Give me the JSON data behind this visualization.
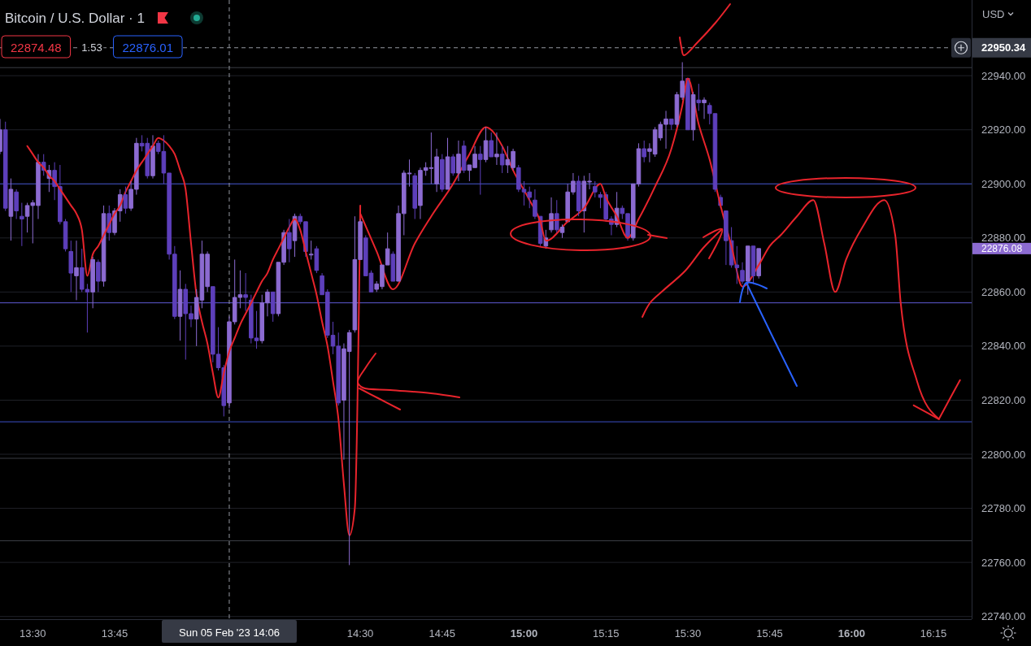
{
  "chart_data": {
    "type": "candlestick",
    "title": "Bitcoin / U.S. Dollar · 1",
    "ylabel": "USD",
    "x": [
      "2023-02-05T13:24",
      "2023-02-05T13:25",
      "2023-02-05T13:26",
      "2023-02-05T13:27",
      "2023-02-05T13:28",
      "2023-02-05T13:29",
      "2023-02-05T13:30",
      "2023-02-05T13:31",
      "2023-02-05T13:32",
      "2023-02-05T13:33",
      "2023-02-05T13:34",
      "2023-02-05T13:35",
      "2023-02-05T13:36",
      "2023-02-05T13:37",
      "2023-02-05T13:38",
      "2023-02-05T13:39",
      "2023-02-05T13:40",
      "2023-02-05T13:41",
      "2023-02-05T13:42",
      "2023-02-05T13:43",
      "2023-02-05T13:44",
      "2023-02-05T13:45",
      "2023-02-05T13:46",
      "2023-02-05T13:47",
      "2023-02-05T13:48",
      "2023-02-05T13:49",
      "2023-02-05T13:50",
      "2023-02-05T13:51",
      "2023-02-05T13:52",
      "2023-02-05T13:53",
      "2023-02-05T13:54",
      "2023-02-05T13:55",
      "2023-02-05T13:56",
      "2023-02-05T13:57",
      "2023-02-05T13:58",
      "2023-02-05T13:59",
      "2023-02-05T14:00",
      "2023-02-05T14:01",
      "2023-02-05T14:02",
      "2023-02-05T14:03",
      "2023-02-05T14:04",
      "2023-02-05T14:05",
      "2023-02-05T14:06",
      "2023-02-05T14:07",
      "2023-02-05T14:08",
      "2023-02-05T14:09",
      "2023-02-05T14:10",
      "2023-02-05T14:11",
      "2023-02-05T14:12",
      "2023-02-05T14:13",
      "2023-02-05T14:14",
      "2023-02-05T14:15",
      "2023-02-05T14:16",
      "2023-02-05T14:17",
      "2023-02-05T14:18",
      "2023-02-05T14:19",
      "2023-02-05T14:20",
      "2023-02-05T14:21",
      "2023-02-05T14:22",
      "2023-02-05T14:23",
      "2023-02-05T14:24",
      "2023-02-05T14:25",
      "2023-02-05T14:26",
      "2023-02-05T14:27",
      "2023-02-05T14:28",
      "2023-02-05T14:29",
      "2023-02-05T14:30",
      "2023-02-05T14:31",
      "2023-02-05T14:32",
      "2023-02-05T14:33",
      "2023-02-05T14:34",
      "2023-02-05T14:35",
      "2023-02-05T14:36",
      "2023-02-05T14:37",
      "2023-02-05T14:38",
      "2023-02-05T14:39",
      "2023-02-05T14:40",
      "2023-02-05T14:41",
      "2023-02-05T14:42",
      "2023-02-05T14:43",
      "2023-02-05T14:44",
      "2023-02-05T14:45",
      "2023-02-05T14:46",
      "2023-02-05T14:47",
      "2023-02-05T14:48",
      "2023-02-05T14:49",
      "2023-02-05T14:50",
      "2023-02-05T14:51",
      "2023-02-05T14:52",
      "2023-02-05T14:53",
      "2023-02-05T14:54",
      "2023-02-05T14:55",
      "2023-02-05T14:56",
      "2023-02-05T14:57",
      "2023-02-05T14:58",
      "2023-02-05T14:59",
      "2023-02-05T15:00",
      "2023-02-05T15:01",
      "2023-02-05T15:02",
      "2023-02-05T15:03",
      "2023-02-05T15:04",
      "2023-02-05T15:05",
      "2023-02-05T15:06",
      "2023-02-05T15:07",
      "2023-02-05T15:08",
      "2023-02-05T15:09",
      "2023-02-05T15:10",
      "2023-02-05T15:11",
      "2023-02-05T15:12",
      "2023-02-05T15:13",
      "2023-02-05T15:14",
      "2023-02-05T15:15",
      "2023-02-05T15:16",
      "2023-02-05T15:17",
      "2023-02-05T15:18",
      "2023-02-05T15:19",
      "2023-02-05T15:20",
      "2023-02-05T15:21",
      "2023-02-05T15:22",
      "2023-02-05T15:23",
      "2023-02-05T15:24",
      "2023-02-05T15:25",
      "2023-02-05T15:26",
      "2023-02-05T15:27",
      "2023-02-05T15:28",
      "2023-02-05T15:29",
      "2023-02-05T15:30",
      "2023-02-05T15:31",
      "2023-02-05T15:32",
      "2023-02-05T15:33",
      "2023-02-05T15:34",
      "2023-02-05T15:35",
      "2023-02-05T15:36",
      "2023-02-05T15:37",
      "2023-02-05T15:38",
      "2023-02-05T15:39",
      "2023-02-05T15:40",
      "2023-02-05T15:41",
      "2023-02-05T15:42",
      "2023-02-05T15:43"
    ],
    "ohlc": [
      [
        22912,
        22924,
        22911,
        22920
      ],
      [
        22920,
        22923,
        22890,
        22891
      ],
      [
        22888,
        22902,
        22879,
        22898
      ],
      [
        22897,
        22898,
        22887,
        22890
      ],
      [
        22888,
        22893,
        22877,
        22887
      ],
      [
        22888,
        22893,
        22882,
        22892
      ],
      [
        22892,
        22894,
        22878,
        22893
      ],
      [
        22892,
        22911,
        22887,
        22908
      ],
      [
        22908,
        22911,
        22903,
        22905
      ],
      [
        22902,
        22907,
        22897,
        22905
      ],
      [
        22905,
        22908,
        22894,
        22899
      ],
      [
        22899,
        22907,
        22885,
        22886
      ],
      [
        22886,
        22887,
        22875,
        22876
      ],
      [
        22875,
        22879,
        22860,
        22867
      ],
      [
        22866,
        22879,
        22857,
        22869
      ],
      [
        22869,
        22876,
        22860,
        22861
      ],
      [
        22861,
        22863,
        22845,
        22860
      ],
      [
        22860,
        22873,
        22854,
        22872
      ],
      [
        22871,
        22872,
        22860,
        22864
      ],
      [
        22864,
        22892,
        22862,
        22889
      ],
      [
        22889,
        22892,
        22879,
        22882
      ],
      [
        22882,
        22891,
        22881,
        22890
      ],
      [
        22890,
        22898,
        22886,
        22896
      ],
      [
        22896,
        22899,
        22889,
        22891
      ],
      [
        22891,
        22901,
        22890,
        22898
      ],
      [
        22898,
        22917,
        22896,
        22915
      ],
      [
        22915,
        22918,
        22912,
        22914
      ],
      [
        22915,
        22917,
        22902,
        22903
      ],
      [
        22903,
        22918,
        22902,
        22914
      ],
      [
        22915,
        22916,
        22911,
        22912
      ],
      [
        22912,
        22918,
        22900,
        22904
      ],
      [
        22904,
        22904,
        22872,
        22874
      ],
      [
        22874,
        22877,
        22850,
        22851
      ],
      [
        22851,
        22868,
        22842,
        22861
      ],
      [
        22861,
        22863,
        22835,
        22852
      ],
      [
        22852,
        22855,
        22847,
        22850
      ],
      [
        22850,
        22861,
        22840,
        22858
      ],
      [
        22857,
        22879,
        22854,
        22874
      ],
      [
        22862,
        22875,
        22860,
        22874
      ],
      [
        22862,
        22862,
        22834,
        22837
      ],
      [
        22837,
        22847,
        22831,
        22832
      ],
      [
        22832,
        22833,
        22814,
        22818
      ],
      [
        22819,
        22851,
        22817,
        22849
      ],
      [
        22849,
        22872,
        22848,
        22858
      ],
      [
        22858,
        22868,
        22854,
        22859
      ],
      [
        22859,
        22867,
        22853,
        22858
      ],
      [
        22857,
        22859,
        22841,
        22843
      ],
      [
        22843,
        22853,
        22839,
        22842
      ],
      [
        22842,
        22859,
        22841,
        22856
      ],
      [
        22856,
        22861,
        22851,
        22860
      ],
      [
        22860,
        22860,
        22849,
        22852
      ],
      [
        22852,
        22871,
        22851,
        22871
      ],
      [
        22871,
        22883,
        22870,
        22882
      ],
      [
        22882,
        22887,
        22871,
        22876
      ],
      [
        22879,
        22889,
        22873,
        22888
      ],
      [
        22888,
        22889,
        22885,
        22886
      ],
      [
        22886,
        22886,
        22873,
        22875
      ],
      [
        22874,
        22879,
        22872,
        22874
      ],
      [
        22876,
        22877,
        22867,
        22868
      ],
      [
        22866,
        22867,
        22859,
        22859
      ],
      [
        22860,
        22861,
        22843,
        22844
      ],
      [
        22844,
        22849,
        22837,
        22840
      ],
      [
        22840,
        22845,
        22818,
        22819
      ],
      [
        22820,
        22841,
        22798,
        22839
      ],
      [
        22838,
        22846,
        22759,
        22845
      ],
      [
        22846,
        22888,
        22845,
        22872
      ],
      [
        22872,
        22887,
        22872,
        22886
      ],
      [
        22880,
        22881,
        22866,
        22866
      ],
      [
        22867,
        22868,
        22860,
        22860
      ],
      [
        22861,
        22864,
        22860,
        22863
      ],
      [
        22862,
        22870,
        22861,
        22870
      ],
      [
        22870,
        22882,
        22870,
        22876
      ],
      [
        22874,
        22875,
        22864,
        22864
      ],
      [
        22864,
        22892,
        22864,
        22889
      ],
      [
        22889,
        22905,
        22881,
        22904
      ],
      [
        22904,
        22909,
        22899,
        22904
      ],
      [
        22903,
        22904,
        22887,
        22891
      ],
      [
        22892,
        22906,
        22887,
        22905
      ],
      [
        22905,
        22908,
        22903,
        22906
      ],
      [
        22906,
        22919,
        22900,
        22906
      ],
      [
        22900,
        22913,
        22897,
        22910
      ],
      [
        22909,
        22911,
        22897,
        22898
      ],
      [
        22898,
        22917,
        22898,
        22910
      ],
      [
        22910,
        22911,
        22903,
        22904
      ],
      [
        22904,
        22916,
        22901,
        22911
      ],
      [
        22914,
        22916,
        22904,
        22905
      ],
      [
        22905,
        22907,
        22901,
        22907
      ],
      [
        22906,
        22914,
        22906,
        22911
      ],
      [
        22911,
        22914,
        22896,
        22909
      ],
      [
        22909,
        22921,
        22908,
        22916
      ],
      [
        22916,
        22919,
        22910,
        22910
      ],
      [
        22910,
        22919,
        22907,
        22911
      ],
      [
        22911,
        22914,
        22904,
        22907
      ],
      [
        22907,
        22914,
        22904,
        22909
      ],
      [
        22906,
        22913,
        22905,
        22912
      ],
      [
        22906,
        22907,
        22897,
        22898
      ],
      [
        22898,
        22901,
        22892,
        22897
      ],
      [
        22897,
        22899,
        22891,
        22895
      ],
      [
        22894,
        22898,
        22887,
        22888
      ],
      [
        22888,
        22888,
        22877,
        22878
      ],
      [
        22877,
        22883,
        22876,
        22880
      ],
      [
        22883,
        22895,
        22882,
        22889
      ],
      [
        22889,
        22894,
        22882,
        22883
      ],
      [
        22882,
        22885,
        22880,
        22884
      ],
      [
        22886,
        22900,
        22886,
        22897
      ],
      [
        22897,
        22904,
        22896,
        22901
      ],
      [
        22901,
        22903,
        22888,
        22890
      ],
      [
        22890,
        22903,
        22882,
        22901
      ],
      [
        22901,
        22904,
        22898,
        22901
      ],
      [
        22899,
        22901,
        22895,
        22897
      ],
      [
        22896,
        22897,
        22891,
        22895
      ],
      [
        22896,
        22897,
        22886,
        22887
      ],
      [
        22887,
        22888,
        22881,
        22885
      ],
      [
        22885,
        22897,
        22884,
        22891
      ],
      [
        22891,
        22892,
        22887,
        22889
      ],
      [
        22889,
        22889,
        22879,
        22880
      ],
      [
        22880,
        22900,
        22879,
        22900
      ],
      [
        22900,
        22915,
        22899,
        22913
      ],
      [
        22913,
        22916,
        22908,
        22910
      ],
      [
        22912,
        22915,
        22908,
        22913
      ],
      [
        22911,
        22921,
        22910,
        22920
      ],
      [
        22917,
        22923,
        22916,
        22922
      ],
      [
        22922,
        22927,
        22913,
        22924
      ],
      [
        22924,
        22924,
        22920,
        22922
      ],
      [
        22922,
        22934,
        22921,
        22933
      ],
      [
        22932,
        22945,
        22931,
        22938
      ],
      [
        22939,
        22939,
        22920,
        22920
      ],
      [
        22920,
        22934,
        22916,
        22933
      ],
      [
        22931,
        22937,
        22927,
        22930
      ],
      [
        22930,
        22932,
        22924,
        22931
      ],
      [
        22929,
        22930,
        22922,
        22926
      ],
      [
        22926,
        22926,
        22897,
        22898
      ],
      [
        22895,
        22896,
        22891,
        22892
      ],
      [
        22890,
        22890,
        22870,
        22879
      ],
      [
        22879,
        22884,
        22869,
        22870
      ],
      [
        22870,
        22877,
        22863,
        22869
      ],
      [
        22868,
        22871,
        22863,
        22864
      ],
      [
        22864,
        22877,
        22859,
        22877
      ],
      [
        22877,
        22877,
        22863,
        22866
      ],
      [
        22866,
        22876.08,
        22865,
        22876.08
      ]
    ],
    "colors": [
      "#8c6bd1",
      "#5d3fba",
      "#8c6bd1",
      "#5d3fba",
      "#5d3fba",
      "#8c6bd1",
      "#8c6bd1",
      "#8c6bd1",
      "#5d3fba",
      "#8c6bd1",
      "#5d3fba",
      "#5d3fba",
      "#5d3fba",
      "#5d3fba",
      "#8c6bd1",
      "#5d3fba",
      "#5d3fba",
      "#8c6bd1",
      "#5d3fba",
      "#8c6bd1",
      "#5d3fba",
      "#8c6bd1",
      "#8c6bd1",
      "#5d3fba",
      "#8c6bd1",
      "#8c6bd1",
      "#5d3fba",
      "#5d3fba",
      "#8c6bd1",
      "#5d3fba",
      "#5d3fba",
      "#5d3fba",
      "#5d3fba",
      "#8c6bd1",
      "#5d3fba",
      "#5d3fba",
      "#8c6bd1",
      "#8c6bd1",
      "#8c6bd1",
      "#5d3fba",
      "#5d3fba",
      "#5d3fba",
      "#8c6bd1",
      "#8c6bd1",
      "#8c6bd1",
      "#5d3fba",
      "#5d3fba",
      "#5d3fba",
      "#8c6bd1",
      "#8c6bd1",
      "#5d3fba",
      "#8c6bd1",
      "#8c6bd1",
      "#5d3fba",
      "#8c6bd1",
      "#5d3fba",
      "#5d3fba",
      "#8c6bd1",
      "#5d3fba",
      "#5d3fba",
      "#5d3fba",
      "#5d3fba",
      "#5d3fba",
      "#8c6bd1",
      "#8c6bd1",
      "#8c6bd1",
      "#8c6bd1",
      "#5d3fba",
      "#5d3fba",
      "#8c6bd1",
      "#8c6bd1",
      "#8c6bd1",
      "#5d3fba",
      "#8c6bd1",
      "#8c6bd1",
      "#8c6bd1",
      "#5d3fba",
      "#8c6bd1",
      "#8c6bd1",
      "#8c6bd1",
      "#8c6bd1",
      "#5d3fba",
      "#8c6bd1",
      "#5d3fba",
      "#8c6bd1",
      "#5d3fba",
      "#8c6bd1",
      "#8c6bd1",
      "#5d3fba",
      "#8c6bd1",
      "#5d3fba",
      "#8c6bd1",
      "#5d3fba",
      "#8c6bd1",
      "#8c6bd1",
      "#5d3fba",
      "#5d3fba",
      "#5d3fba",
      "#5d3fba",
      "#5d3fba",
      "#8c6bd1",
      "#8c6bd1",
      "#5d3fba",
      "#8c6bd1",
      "#8c6bd1",
      "#8c6bd1",
      "#5d3fba",
      "#8c6bd1",
      "#8c6bd1",
      "#5d3fba",
      "#5d3fba",
      "#5d3fba",
      "#5d3fba",
      "#8c6bd1",
      "#5d3fba",
      "#5d3fba",
      "#8c6bd1",
      "#8c6bd1",
      "#5d3fba",
      "#8c6bd1",
      "#8c6bd1",
      "#8c6bd1",
      "#8c6bd1",
      "#5d3fba",
      "#8c6bd1",
      "#8c6bd1",
      "#5d3fba",
      "#8c6bd1",
      "#5d3fba",
      "#8c6bd1",
      "#5d3fba",
      "#5d3fba",
      "#5d3fba",
      "#5d3fba",
      "#5d3fba",
      "#5d3fba",
      "#5d3fba",
      "#8c6bd1",
      "#5d3fba",
      "#8c6bd1"
    ],
    "series": [
      {
        "type": "line",
        "color": "#e8242c",
        "x": [
          "2023-02-05T13:29",
          "2023-02-05T13:30",
          "2023-02-05T13:31",
          "2023-02-05T13:32",
          "2023-02-05T13:33",
          "2023-02-05T13:34",
          "2023-02-05T13:35",
          "2023-02-05T13:36",
          "2023-02-05T13:37",
          "2023-02-05T13:38",
          "2023-02-05T13:39",
          "2023-02-05T13:40",
          "2023-02-05T13:41",
          "2023-02-05T13:42",
          "2023-02-05T13:43",
          "2023-02-05T13:44",
          "2023-02-05T13:45",
          "2023-02-05T13:46",
          "2023-02-05T13:47",
          "2023-02-05T13:48",
          "2023-02-05T13:49",
          "2023-02-05T13:50",
          "2023-02-05T13:51",
          "2023-02-05T13:52",
          "2023-02-05T13:53",
          "2023-02-05T13:54",
          "2023-02-05T13:55",
          "2023-02-05T13:56",
          "2023-02-05T13:57",
          "2023-02-05T13:58",
          "2023-02-05T13:59",
          "2023-02-05T14:00",
          "2023-02-05T14:01",
          "2023-02-05T14:02",
          "2023-02-05T14:03",
          "2023-02-05T14:04",
          "2023-02-05T14:05",
          "2023-02-05T14:06",
          "2023-02-05T14:07",
          "2023-02-05T14:08",
          "2023-02-05T14:09",
          "2023-02-05T14:10",
          "2023-02-05T14:11",
          "2023-02-05T14:12",
          "2023-02-05T14:13",
          "2023-02-05T14:14",
          "2023-02-05T14:15",
          "2023-02-05T14:16",
          "2023-02-05T14:17",
          "2023-02-05T14:18",
          "2023-02-05T14:19",
          "2023-02-05T14:20",
          "2023-02-05T14:21",
          "2023-02-05T14:22",
          "2023-02-05T14:23",
          "2023-02-05T14:24",
          "2023-02-05T14:25",
          "2023-02-05T14:26",
          "2023-02-05T14:27",
          "2023-02-05T14:28",
          "2023-02-05T14:29",
          "2023-02-05T14:30"
        ],
        "values": [
          22914,
          22911,
          22908,
          22906,
          22903,
          22901,
          22898,
          22895,
          22892,
          22889,
          22883,
          22866,
          22874,
          22877,
          22881,
          22885,
          22889,
          22892,
          22897,
          22901,
          22905,
          22908,
          22911,
          22914,
          22917,
          22916,
          22914,
          22911,
          22905,
          22898,
          22878,
          22859,
          22849,
          22841,
          22830,
          22821,
          22830,
          22838,
          22843,
          22848,
          22852,
          22856,
          22860,
          22864,
          22867,
          22872,
          22876,
          22880,
          22884,
          22887,
          22883,
          22875,
          22867,
          22859,
          22849,
          22840,
          22827,
          22813,
          22789,
          22770,
          22780,
          22892
        ]
      },
      {
        "type": "line",
        "color": "#e8242c",
        "x": [
          "2023-02-05T14:30",
          "2023-02-05T14:33",
          "2023-02-05T14:36",
          "2023-02-05T14:40",
          "2023-02-05T14:43",
          "2023-02-05T14:47",
          "2023-02-05T14:50",
          "2023-02-05T14:53",
          "2023-02-05T14:56",
          "2023-02-05T14:58",
          "2023-02-05T15:01",
          "2023-02-05T15:03",
          "2023-02-05T15:04",
          "2023-02-05T15:08",
          "2023-02-05T15:11",
          "2023-02-05T15:14",
          "2023-02-05T15:15",
          "2023-02-05T15:17",
          "2023-02-05T15:19",
          "2023-02-05T15:21",
          "2023-02-05T15:24",
          "2023-02-05T15:27",
          "2023-02-05T15:29",
          "2023-02-05T15:30",
          "2023-02-05T15:32",
          "2023-02-05T15:34",
          "2023-02-05T15:36",
          "2023-02-05T15:38",
          "2023-02-05T15:40",
          "2023-02-05T15:43",
          "2023-02-05T15:45",
          "2023-02-05T15:47",
          "2023-02-05T15:50",
          "2023-02-05T15:53",
          "2023-02-05T15:55",
          "2023-02-05T15:57",
          "2023-02-05T15:59",
          "2023-02-05T16:02",
          "2023-02-05T16:06",
          "2023-02-05T16:08",
          "2023-02-05T16:09",
          "2023-02-05T16:12",
          "2023-02-05T16:16"
        ],
        "values": [
          22889,
          22875,
          22861,
          22878,
          22888,
          22900,
          22911,
          22921,
          22914,
          22905,
          22894,
          22886,
          22879,
          22886,
          22891,
          22900,
          22895,
          22888,
          22880,
          22887,
          22899,
          22913,
          22929,
          22939,
          22922,
          22909,
          22892,
          22877,
          22862,
          22870,
          22877,
          22881,
          22888,
          22894,
          22878,
          22860,
          22872,
          22884,
          22894,
          22881,
          22856,
          22827,
          22813
        ]
      }
    ],
    "xlim": [
      "2023-02-05T13:24",
      "2023-02-05T16:22"
    ],
    "ylim": [
      22739,
      22968
    ],
    "xticks": [
      {
        "value": "2023-02-05T13:30",
        "label": "13:30"
      },
      {
        "value": "2023-02-05T13:45",
        "label": "13:45"
      },
      {
        "value": "2023-02-05T14:30",
        "label": "14:30"
      },
      {
        "value": "2023-02-05T14:45",
        "label": "14:45"
      },
      {
        "value": "2023-02-05T15:00",
        "label": "15:00"
      },
      {
        "value": "2023-02-05T15:15",
        "label": "15:15"
      },
      {
        "value": "2023-02-05T15:30",
        "label": "15:30"
      },
      {
        "value": "2023-02-05T15:45",
        "label": "15:45"
      },
      {
        "value": "2023-02-05T16:00",
        "label": "16:00"
      },
      {
        "value": "2023-02-05T16:15",
        "label": "16:15"
      }
    ],
    "yticks": [
      {
        "value": 22740,
        "label": "22740.00"
      },
      {
        "value": 22760,
        "label": "22760.00"
      },
      {
        "value": 22780,
        "label": "22780.00"
      },
      {
        "value": 22800,
        "label": "22800.00"
      },
      {
        "value": 22820,
        "label": "22820.00"
      },
      {
        "value": 22840,
        "label": "22840.00"
      },
      {
        "value": 22860,
        "label": "22860.00"
      },
      {
        "value": 22880,
        "label": "22880.00"
      },
      {
        "value": 22900,
        "label": "22900.00"
      },
      {
        "value": 22920,
        "label": "22920.00"
      },
      {
        "value": 22940,
        "label": "22940.00"
      }
    ],
    "grid": "y",
    "ref_lines": [
      {
        "axis": "y",
        "value": 22900,
        "color": "#3c4fc6"
      },
      {
        "axis": "y",
        "value": 22856,
        "color": "#5f5ad6"
      },
      {
        "axis": "y",
        "value": 22812,
        "color": "#3c4fc6"
      },
      {
        "axis": "y",
        "value": 22943,
        "color": "#3a3d45"
      },
      {
        "axis": "y",
        "value": 22798.5,
        "color": "#3a3d45"
      },
      {
        "axis": "y",
        "value": 22768,
        "color": "#3a3d45"
      },
      {
        "axis": "x",
        "value": "2023-02-05T14:06",
        "label": "Sun 05 Feb '23 14:06",
        "color": "#9598a1",
        "line_style": "dashed"
      },
      {
        "axis": "y",
        "value": 22950.34,
        "label": "22950.34",
        "color": "#9598a1",
        "line_style": "dashed"
      }
    ],
    "annotations": [
      "22874.48",
      "1.53",
      "22876.01",
      "22876.08"
    ]
  }
}
